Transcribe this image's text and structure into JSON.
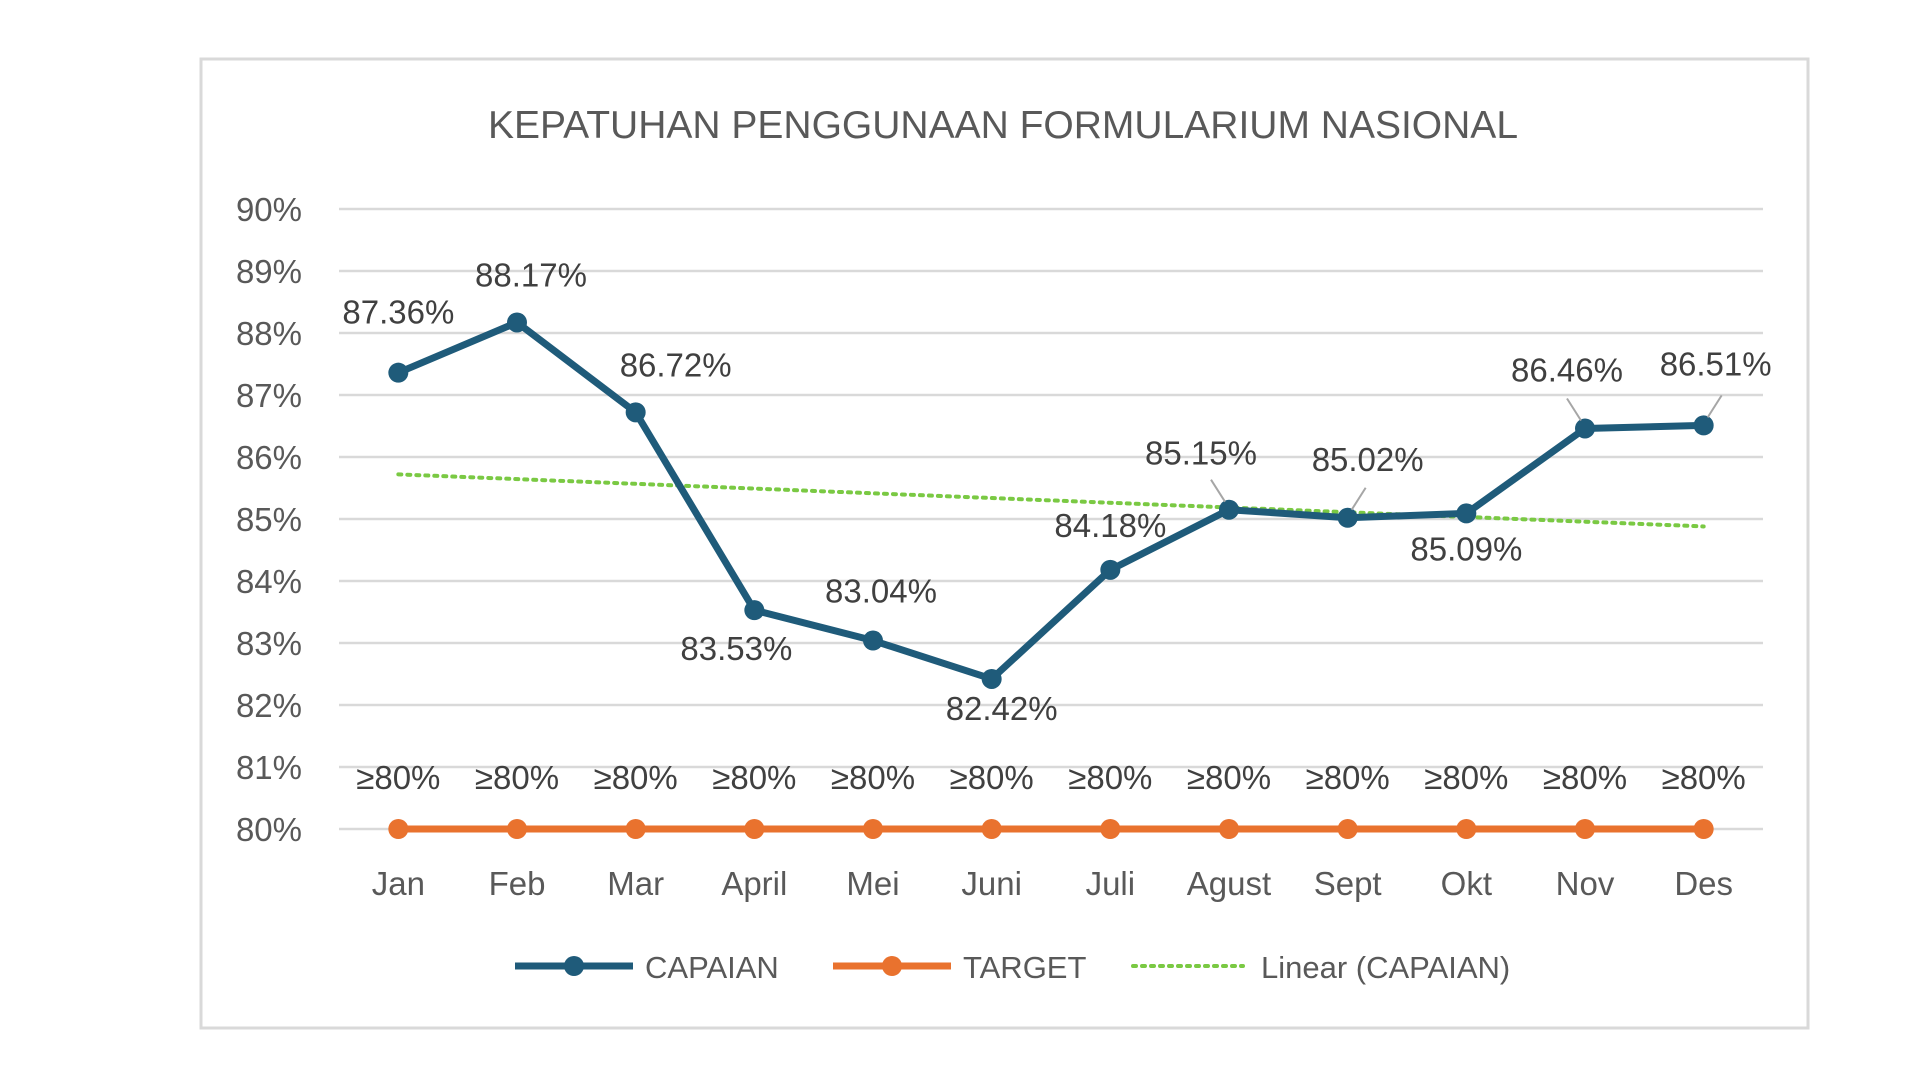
{
  "chart_data": {
    "type": "line",
    "title": "KEPATUHAN PENGGUNAAN FORMULARIUM NASIONAL",
    "xlabel": "",
    "ylabel": "",
    "ylim": [
      0.8,
      0.9
    ],
    "yticks": [
      "90%",
      "89%",
      "88%",
      "87%",
      "86%",
      "85%",
      "84%",
      "83%",
      "82%",
      "81%",
      "80%"
    ],
    "categories": [
      "Jan",
      "Feb",
      "Mar",
      "April",
      "Mei",
      "Juni",
      "Juli",
      "Agust",
      "Sept",
      "Okt",
      "Nov",
      "Des"
    ],
    "series": [
      {
        "name": "CAPAIAN",
        "color": "#1f5b7a",
        "values": [
          0.8736,
          0.8817,
          0.8672,
          0.8353,
          0.8304,
          0.8242,
          0.8418,
          0.8515,
          0.8502,
          0.8509,
          0.8646,
          0.8651
        ],
        "labels": [
          "87.36%",
          "88.17%",
          "86.72%",
          "83.53%",
          "83.04%",
          "82.42%",
          "84.18%",
          "85.15%",
          "85.02%",
          "85.09%",
          "86.46%",
          "86.51%"
        ]
      },
      {
        "name": "TARGET",
        "color": "#e9722e",
        "values": [
          0.8,
          0.8,
          0.8,
          0.8,
          0.8,
          0.8,
          0.8,
          0.8,
          0.8,
          0.8,
          0.8,
          0.8
        ],
        "labels": [
          "≥80%",
          "≥80%",
          "≥80%",
          "≥80%",
          "≥80%",
          "≥80%",
          "≥80%",
          "≥80%",
          "≥80%",
          "≥80%",
          "≥80%",
          "≥80%"
        ]
      }
    ],
    "trendline": {
      "name": "Linear (CAPAIAN)",
      "color": "#7ac943",
      "start": 0.8572,
      "end": 0.8488
    },
    "grid": true,
    "legend_position": "bottom"
  }
}
